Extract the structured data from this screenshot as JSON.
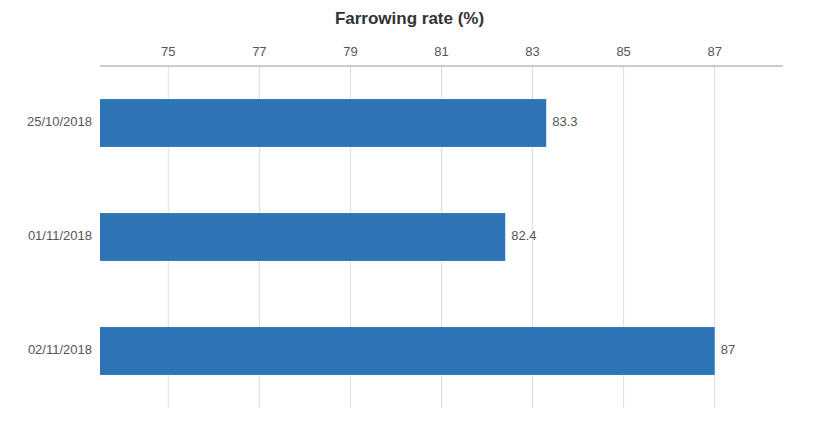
{
  "chart_data": {
    "type": "bar",
    "orientation": "horizontal",
    "title": "Farrowing rate (%)",
    "categories": [
      "02/11/2018",
      "01/11/2018",
      "25/10/2018"
    ],
    "values": [
      87,
      82.4,
      83.3
    ],
    "color": "#2E75B6",
    "xlim": [
      73.5,
      88.5
    ],
    "xticks": [
      75,
      77,
      79,
      81,
      83,
      85,
      87
    ],
    "grid": true,
    "data_labels": true
  }
}
